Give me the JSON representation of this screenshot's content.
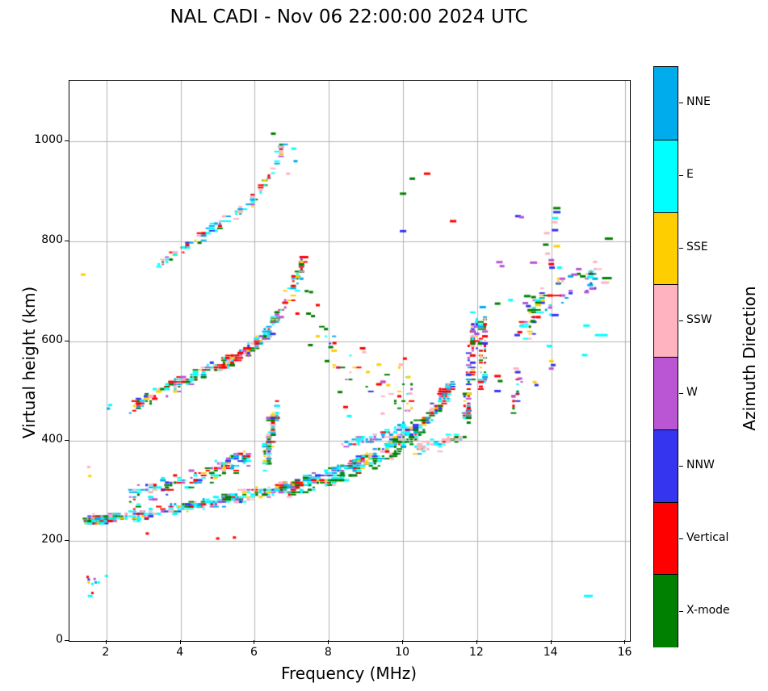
{
  "chart_data": {
    "type": "scatter",
    "title": "NAL CADI - Nov 06 22:00:00 2024 UTC",
    "xlabel": "Frequency (MHz)",
    "ylabel": "Virtual height (km)",
    "xlim": [
      1.0,
      16.12
    ],
    "ylim": [
      0,
      1121
    ],
    "xticks": [
      2,
      4,
      6,
      8,
      10,
      12,
      14,
      16
    ],
    "yticks": [
      0,
      200,
      400,
      600,
      800,
      1000
    ],
    "grid": true,
    "grid_color": "#b4b4b4",
    "colorbar": {
      "label": "Azimuth Direction",
      "categories_top_to_bottom": [
        {
          "label": "NNE",
          "key": "NNE",
          "color": "#00ACEC"
        },
        {
          "label": "E",
          "key": "E",
          "color": "#00FFFF"
        },
        {
          "label": "SSE",
          "key": "SSE",
          "color": "#FFCE00"
        },
        {
          "label": "SSW",
          "key": "SSW",
          "color": "#FFB3C1"
        },
        {
          "label": "W",
          "key": "W",
          "color": "#BA55D3"
        },
        {
          "label": "NNW",
          "key": "NNW",
          "color": "#3535F0"
        },
        {
          "label": "Vertical",
          "key": "V",
          "color": "#FF0000"
        },
        {
          "label": "X-mode",
          "key": "X",
          "color": "#008000"
        }
      ]
    },
    "palette": {
      "NNE": "#00ACEC",
      "E": "#00FFFF",
      "SSE": "#FFCE00",
      "SSW": "#FFB3C1",
      "W": "#BA55D3",
      "NNW": "#3535F0",
      "V": "#FF0000",
      "X": "#008000"
    },
    "seed": 1337,
    "traces": [
      {
        "name": "first-hop-start",
        "path": [
          [
            1.45,
            240
          ],
          [
            1.8,
            243
          ],
          [
            2.2,
            246
          ]
        ],
        "spread": 9,
        "n": 100,
        "colors": {
          "SSW": 18,
          "SSE": 12,
          "E": 22,
          "NNE": 14,
          "V": 14,
          "W": 8,
          "NNW": 6,
          "X": 6
        }
      },
      {
        "name": "first-hop-core",
        "path": [
          [
            1.5,
            242
          ],
          [
            2.5,
            250
          ],
          [
            3.5,
            260
          ],
          [
            4.5,
            272
          ],
          [
            5.5,
            286
          ],
          [
            6.5,
            302
          ],
          [
            7.5,
            322
          ],
          [
            8.5,
            348
          ],
          [
            9.3,
            375
          ]
        ],
        "spread": 13,
        "n": 430,
        "colors": {
          "E": 26,
          "NNE": 15,
          "V": 14,
          "X": 13,
          "SSW": 8,
          "W": 9,
          "SSE": 7,
          "NNW": 8
        }
      },
      {
        "name": "spread-f-upper",
        "path": [
          [
            2.6,
            285
          ],
          [
            3.5,
            305
          ],
          [
            4.4,
            325
          ],
          [
            5.2,
            348
          ],
          [
            5.9,
            372
          ]
        ],
        "spread": 24,
        "n": 150,
        "colors": {
          "W": 13,
          "NNW": 10,
          "V": 16,
          "E": 21,
          "NNE": 14,
          "X": 12,
          "SSE": 7,
          "SSW": 7
        }
      },
      {
        "name": "spread-column-6p5",
        "path": [
          [
            6.3,
            365
          ],
          [
            6.45,
            420
          ],
          [
            6.6,
            470
          ]
        ],
        "spread": 30,
        "n": 85,
        "colors": {
          "X": 28,
          "V": 16,
          "E": 18,
          "NNE": 12,
          "NNW": 10,
          "W": 6,
          "SSE": 5,
          "SSW": 5
        }
      },
      {
        "name": "x-mode-band",
        "path": [
          [
            6.8,
            292
          ],
          [
            7.8,
            312
          ],
          [
            8.8,
            342
          ],
          [
            9.8,
            378
          ],
          [
            10.6,
            425
          ]
        ],
        "spread": 14,
        "n": 120,
        "colors": {
          "X": 52,
          "E": 20,
          "NNE": 8,
          "V": 9,
          "SSW": 6,
          "SSE": 5
        }
      },
      {
        "name": "cusp-upper",
        "path": [
          [
            8.3,
            392
          ],
          [
            9.0,
            402
          ],
          [
            9.6,
            418
          ],
          [
            10.1,
            432
          ]
        ],
        "spread": 10,
        "n": 55,
        "colors": {
          "E": 44,
          "NNE": 20,
          "SSW": 10,
          "W": 8,
          "SSE": 6,
          "NNW": 6,
          "V": 6
        }
      },
      {
        "name": "first-hop-steep",
        "path": [
          [
            9.4,
            382
          ],
          [
            10.0,
            408
          ],
          [
            10.6,
            442
          ],
          [
            11.0,
            472
          ],
          [
            11.35,
            515
          ]
        ],
        "spread": 17,
        "n": 170,
        "colors": {
          "E": 25,
          "SSW": 13,
          "NNE": 12,
          "V": 15,
          "X": 13,
          "W": 8,
          "NNW": 7,
          "SSE": 7
        }
      },
      {
        "name": "pink-cloud",
        "path": [
          [
            10.35,
            385
          ],
          [
            11.0,
            395
          ],
          [
            11.6,
            408
          ]
        ],
        "spread": 15,
        "n": 55,
        "colors": {
          "SSW": 52,
          "E": 18,
          "NNE": 10,
          "SSE": 8,
          "X": 6,
          "V": 6
        }
      },
      {
        "name": "red-cluster",
        "path": [
          [
            11.0,
            492
          ],
          [
            11.3,
            512
          ]
        ],
        "spread": 9,
        "n": 28,
        "colors": {
          "V": 55,
          "E": 14,
          "NNE": 10,
          "NNW": 11,
          "W": 10
        }
      },
      {
        "name": "column-11p8",
        "path": [
          [
            11.7,
            445
          ],
          [
            11.78,
            525
          ],
          [
            11.88,
            600
          ],
          [
            11.95,
            638
          ]
        ],
        "spread": 24,
        "n": 105,
        "colors": {
          "V": 17,
          "NNW": 14,
          "W": 14,
          "X": 14,
          "E": 14,
          "SSE": 9,
          "NNE": 8,
          "SSW": 10
        }
      },
      {
        "name": "column-12p1",
        "path": [
          [
            12.1,
            500
          ],
          [
            12.15,
            580
          ],
          [
            12.2,
            655
          ]
        ],
        "spread": 22,
        "n": 55,
        "colors": {
          "V": 20,
          "X": 18,
          "W": 14,
          "NNW": 12,
          "E": 12,
          "SSE": 10,
          "NNE": 8,
          "SSW": 6
        }
      },
      {
        "name": "second-hop",
        "path": [
          [
            2.65,
            468
          ],
          [
            3.2,
            490
          ],
          [
            4.0,
            515
          ],
          [
            4.8,
            540
          ],
          [
            5.5,
            565
          ],
          [
            6.0,
            592
          ],
          [
            6.4,
            622
          ],
          [
            6.7,
            658
          ]
        ],
        "spread": 15,
        "n": 250,
        "colors": {
          "V": 24,
          "E": 19,
          "X": 16,
          "NNE": 10,
          "SSW": 10,
          "W": 9,
          "SSE": 6,
          "NNW": 6
        }
      },
      {
        "name": "second-hop-top",
        "path": [
          [
            6.75,
            665
          ],
          [
            7.0,
            702
          ],
          [
            7.2,
            742
          ],
          [
            7.35,
            768
          ]
        ],
        "spread": 15,
        "n": 40,
        "colors": {
          "V": 26,
          "E": 24,
          "X": 14,
          "NNE": 12,
          "SSE": 8,
          "W": 8,
          "NNW": 8
        }
      },
      {
        "name": "third-hop",
        "path": [
          [
            3.35,
            752
          ],
          [
            3.9,
            776
          ],
          [
            4.6,
            812
          ],
          [
            5.3,
            846
          ],
          [
            5.9,
            876
          ],
          [
            6.3,
            916
          ],
          [
            6.6,
            962
          ],
          [
            6.75,
            992
          ]
        ],
        "spread": 13,
        "n": 105,
        "colors": {
          "E": 30,
          "NNE": 18,
          "V": 18,
          "X": 10,
          "SSW": 9,
          "SSE": 9,
          "W": 3,
          "NNW": 3
        }
      },
      {
        "name": "mid-sparse",
        "path": [
          [
            7.5,
            640
          ],
          [
            8.2,
            565
          ],
          [
            9.0,
            540
          ],
          [
            9.8,
            520
          ],
          [
            10.3,
            475
          ]
        ],
        "spread": 55,
        "n": 45,
        "colors": {
          "X": 30,
          "SSW": 15,
          "SSE": 13,
          "E": 14,
          "V": 13,
          "NNE": 8,
          "W": 4,
          "NNW": 3
        }
      },
      {
        "name": "right-scatter",
        "path": [
          [
            13.2,
            622
          ],
          [
            13.6,
            660
          ],
          [
            14.1,
            700
          ],
          [
            14.7,
            722
          ],
          [
            15.2,
            730
          ]
        ],
        "spread": 42,
        "n": 80,
        "colors": {
          "W": 22,
          "X": 20,
          "NNW": 13,
          "E": 14,
          "SSW": 10,
          "V": 8,
          "NNE": 7,
          "SSE": 6
        }
      },
      {
        "name": "col-13",
        "path": [
          [
            12.95,
            470
          ],
          [
            13.15,
            520
          ]
        ],
        "spread": 28,
        "n": 16,
        "colors": {
          "X": 28,
          "V": 20,
          "NNW": 15,
          "W": 11,
          "SSW": 10,
          "SSE": 8,
          "E": 8
        }
      }
    ],
    "points": [
      [
        1.52,
        123,
        "NNW",
        3
      ],
      [
        1.52,
        117,
        "SSE",
        3
      ],
      [
        1.62,
        114,
        "E",
        3
      ],
      [
        1.68,
        124,
        "W",
        3
      ],
      [
        1.71,
        117,
        "NNE",
        3
      ],
      [
        1.79,
        117,
        "E",
        3
      ],
      [
        1.56,
        90,
        "E",
        6
      ],
      [
        1.49,
        128,
        "V",
        3
      ],
      [
        2.0,
        130,
        "E",
        4
      ],
      [
        1.62,
        96,
        "V",
        3
      ],
      [
        1.37,
        733,
        "SSE",
        6
      ],
      [
        1.52,
        348,
        "SSW",
        4
      ],
      [
        1.55,
        330,
        "SSE",
        4
      ],
      [
        2.1,
        472,
        "E",
        5
      ],
      [
        2.05,
        465,
        "NNE",
        4
      ],
      [
        10.0,
        820,
        "NNW",
        8
      ],
      [
        10.0,
        895,
        "X",
        8
      ],
      [
        10.25,
        925,
        "X",
        7
      ],
      [
        10.65,
        935,
        "V",
        8
      ],
      [
        11.35,
        840,
        "V",
        8
      ],
      [
        13.1,
        850,
        "NNW",
        7
      ],
      [
        13.2,
        848,
        "W",
        6
      ],
      [
        14.15,
        866,
        "X",
        9
      ],
      [
        14.15,
        858,
        "NNW",
        9
      ],
      [
        14.1,
        846,
        "E",
        8
      ],
      [
        14.08,
        838,
        "SSW",
        8
      ],
      [
        14.1,
        822,
        "NNW",
        8
      ],
      [
        13.88,
        816,
        "SSW",
        7
      ],
      [
        14.15,
        790,
        "SSE",
        8
      ],
      [
        13.85,
        793,
        "X",
        7
      ],
      [
        13.9,
        775,
        "SSW",
        6
      ],
      [
        14.0,
        762,
        "W",
        7
      ],
      [
        14.0,
        754,
        "V",
        7
      ],
      [
        14.02,
        747,
        "NNW",
        7
      ],
      [
        14.22,
        747,
        "E",
        6
      ],
      [
        13.52,
        757,
        "W",
        9
      ],
      [
        12.6,
        758,
        "W",
        8
      ],
      [
        12.67,
        750,
        "W",
        6
      ],
      [
        15.55,
        805,
        "X",
        10
      ],
      [
        15.5,
        726,
        "X",
        12
      ],
      [
        15.45,
        717,
        "SSW",
        10
      ],
      [
        15.05,
        728,
        "E",
        8
      ],
      [
        14.62,
        733,
        "W",
        8
      ],
      [
        15.05,
        712,
        "NNE",
        7
      ],
      [
        15.1,
        705,
        "W",
        7
      ],
      [
        14.95,
        698,
        "W",
        6
      ],
      [
        12.15,
        668,
        "NNE",
        8
      ],
      [
        12.55,
        675,
        "X",
        7
      ],
      [
        12.9,
        682,
        "E",
        6
      ],
      [
        13.35,
        690,
        "X",
        8
      ],
      [
        13.52,
        688,
        "X",
        6
      ],
      [
        13.3,
        676,
        "W",
        7
      ],
      [
        13.38,
        670,
        "NNW",
        6
      ],
      [
        13.42,
        662,
        "X",
        6
      ],
      [
        13.65,
        648,
        "V",
        6
      ],
      [
        13.5,
        640,
        "X",
        6
      ],
      [
        13.2,
        630,
        "E",
        6
      ],
      [
        13.15,
        618,
        "V",
        6
      ],
      [
        13.08,
        612,
        "NNW",
        7
      ],
      [
        14.1,
        652,
        "NNW",
        9
      ],
      [
        14.95,
        631,
        "E",
        8
      ],
      [
        15.35,
        612,
        "E",
        16
      ],
      [
        13.95,
        590,
        "E",
        7
      ],
      [
        14.9,
        572,
        "E",
        7
      ],
      [
        13.05,
        545,
        "SSW",
        7
      ],
      [
        13.1,
        538,
        "NNW",
        6
      ],
      [
        14.0,
        560,
        "SSE",
        6
      ],
      [
        14.05,
        552,
        "NNW",
        6
      ],
      [
        14.0,
        545,
        "W",
        6
      ],
      [
        12.55,
        530,
        "V",
        8
      ],
      [
        12.62,
        520,
        "X",
        6
      ],
      [
        12.55,
        500,
        "NNW",
        8
      ],
      [
        13.15,
        525,
        "W",
        6
      ],
      [
        13.55,
        518,
        "SSE",
        5
      ],
      [
        13.6,
        512,
        "NNW",
        5
      ],
      [
        8.45,
        468,
        "V",
        6
      ],
      [
        8.55,
        450,
        "E",
        6
      ],
      [
        8.3,
        498,
        "X",
        6
      ],
      [
        7.95,
        560,
        "X",
        6
      ],
      [
        8.05,
        588,
        "X",
        6
      ],
      [
        8.15,
        596,
        "V",
        5
      ],
      [
        7.5,
        592,
        "X",
        6
      ],
      [
        7.45,
        655,
        "X",
        6
      ],
      [
        7.57,
        650,
        "X",
        5
      ],
      [
        7.4,
        700,
        "X",
        5
      ],
      [
        7.52,
        698,
        "X",
        5
      ],
      [
        7.15,
        655,
        "V",
        5
      ],
      [
        8.95,
        578,
        "SSW",
        5
      ],
      [
        9.35,
        553,
        "SSE",
        6
      ],
      [
        9.05,
        538,
        "SSE",
        5
      ],
      [
        9.95,
        553,
        "SSW",
        6
      ],
      [
        10.15,
        528,
        "SSE",
        5
      ],
      [
        9.45,
        455,
        "SSW",
        5
      ],
      [
        10.2,
        495,
        "SSW",
        5
      ],
      [
        9.6,
        512,
        "SSE",
        5
      ],
      [
        10.05,
        565,
        "V",
        5
      ],
      [
        3.1,
        215,
        "V",
        4
      ],
      [
        5.0,
        205,
        "V",
        4
      ],
      [
        5.45,
        207,
        "V",
        4
      ],
      [
        15.0,
        90,
        "E",
        11
      ],
      [
        7.05,
        985,
        "E",
        6
      ],
      [
        7.1,
        960,
        "NNE",
        5
      ],
      [
        6.5,
        1015,
        "X",
        6
      ],
      [
        6.9,
        935,
        "SSW",
        5
      ]
    ]
  }
}
